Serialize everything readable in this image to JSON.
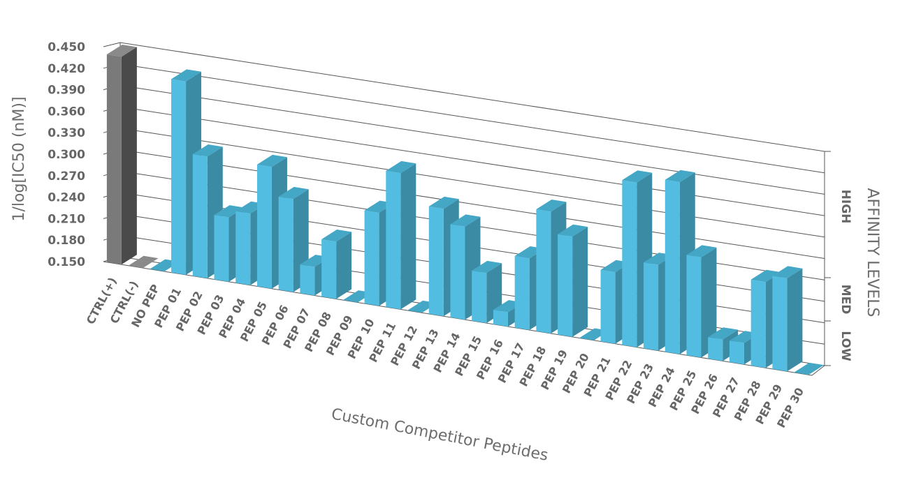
{
  "chart_data": {
    "type": "bar",
    "title": "",
    "xlabel": "Custom Competitor Peptides",
    "ylabel": "1/log[IC50 (nM)]",
    "secondary_axis_label": "AFFINITY LEVELS",
    "affinity_levels": [
      "HIGH",
      "MED",
      "LOW"
    ],
    "ylim": [
      0.15,
      0.45
    ],
    "y_ticks": [
      "0.450",
      "0.420",
      "0.390",
      "0.360",
      "0.330",
      "0.300",
      "0.270",
      "0.240",
      "0.210",
      "0.180",
      "0.150"
    ],
    "grid": true,
    "categories": [
      "CTRL(+)",
      "CTRL(-)",
      "NO PEP",
      "PEP 01",
      "PEP 02",
      "PEP 03",
      "PEP 04",
      "PEP 05",
      "PEP 06",
      "PEP 07",
      "PEP 08",
      "PEP 09",
      "PEP 10",
      "PEP 11",
      "PEP 12",
      "PEP 13",
      "PEP 14",
      "PEP 15",
      "PEP 16",
      "PEP 17",
      "PEP 18",
      "PEP 19",
      "PEP 20",
      "PEP 21",
      "PEP 22",
      "PEP 23",
      "PEP 24",
      "PEP 25",
      "PEP 26",
      "PEP 27",
      "PEP 28",
      "PEP 29",
      "PEP 30"
    ],
    "values": [
      0.44,
      0.15,
      0.15,
      0.42,
      0.32,
      0.24,
      0.25,
      0.32,
      0.28,
      0.19,
      0.23,
      0.15,
      0.28,
      0.34,
      0.15,
      0.3,
      0.28,
      0.22,
      0.17,
      0.25,
      0.32,
      0.29,
      0.15,
      0.25,
      0.38,
      0.27,
      0.39,
      0.29,
      0.18,
      0.18,
      0.27,
      0.28,
      0.15
    ],
    "colors": {
      "control": "#7a7a7a",
      "control_side": "#4a4a4a",
      "control_top": "#8a8a8a",
      "peptide": "#52bde0",
      "peptide_side": "#3b8ba5",
      "peptide_top": "#45a7c6",
      "text": "#666666"
    }
  }
}
